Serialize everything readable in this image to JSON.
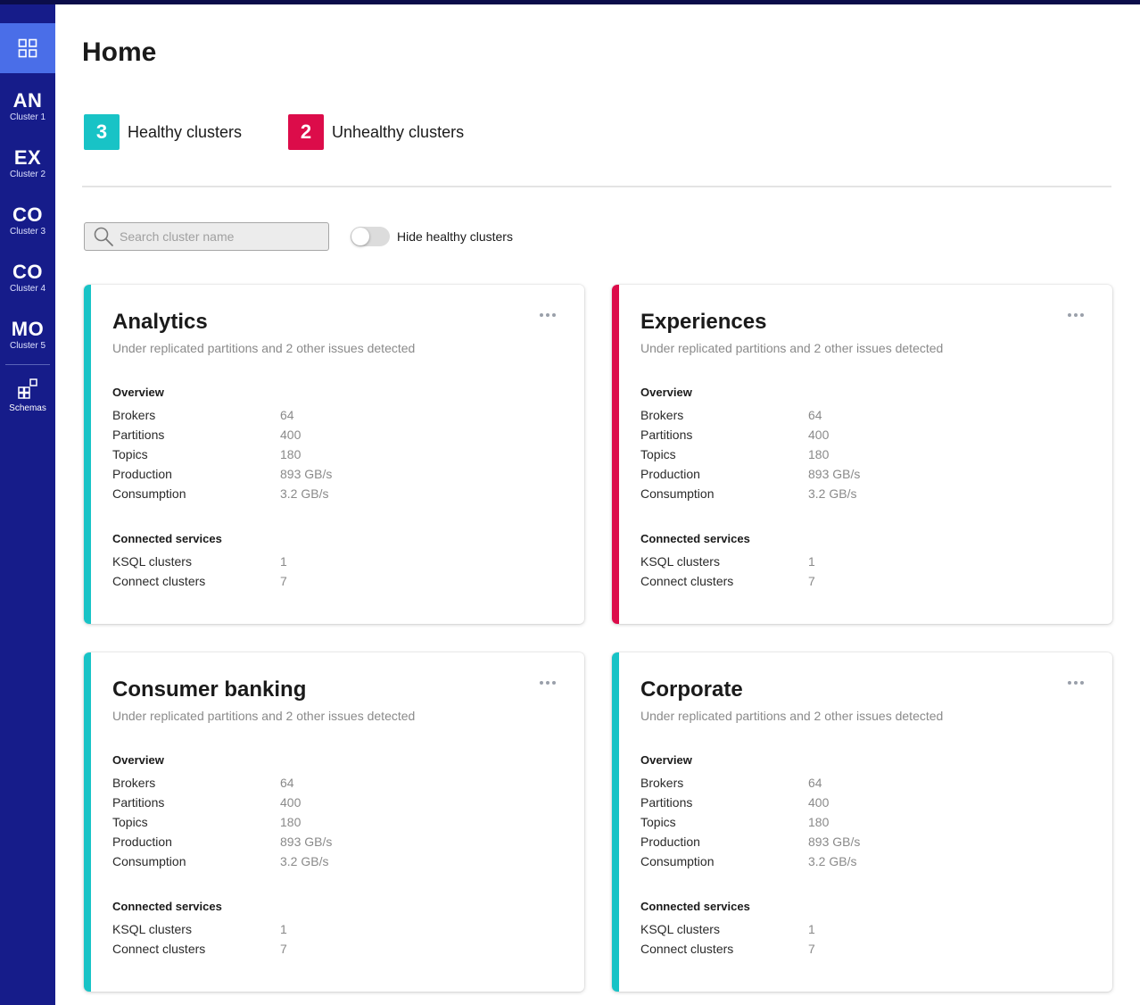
{
  "colors": {
    "healthy": "#18c3c6",
    "unhealthy": "#dc0c4a",
    "sidebar": "#161c8a",
    "sidebar_active": "#4a6ee8"
  },
  "sidebar": {
    "home_icon": "grid-icon",
    "items": [
      {
        "abbr": "AN",
        "label": "Cluster 1"
      },
      {
        "abbr": "EX",
        "label": "Cluster 2"
      },
      {
        "abbr": "CO",
        "label": "Cluster 3"
      },
      {
        "abbr": "CO",
        "label": "Cluster 4"
      },
      {
        "abbr": "MO",
        "label": "Cluster 5"
      }
    ],
    "schemas": {
      "icon": "schemas-icon",
      "label": "Schemas"
    }
  },
  "page": {
    "title": "Home"
  },
  "stats": {
    "healthy": {
      "count": "3",
      "label": "Healthy clusters"
    },
    "unhealthy": {
      "count": "2",
      "label": "Unhealthy clusters"
    }
  },
  "search": {
    "placeholder": "Search cluster name",
    "value": ""
  },
  "toggle": {
    "label": "Hide healthy clusters",
    "on": false
  },
  "section_labels": {
    "overview": "Overview",
    "connected": "Connected services"
  },
  "clusters": [
    {
      "name": "Analytics",
      "status": "healthy",
      "subtitle": "Under replicated partitions and 2 other issues detected",
      "overview": [
        {
          "k": "Brokers",
          "v": "64"
        },
        {
          "k": "Partitions",
          "v": "400"
        },
        {
          "k": "Topics",
          "v": "180"
        },
        {
          "k": "Production",
          "v": "893 GB/s"
        },
        {
          "k": "Consumption",
          "v": "3.2 GB/s"
        }
      ],
      "connected": [
        {
          "k": "KSQL clusters",
          "v": "1"
        },
        {
          "k": "Connect clusters",
          "v": "7"
        }
      ]
    },
    {
      "name": "Experiences",
      "status": "unhealthy",
      "subtitle": "Under replicated partitions and 2 other issues detected",
      "overview": [
        {
          "k": "Brokers",
          "v": "64"
        },
        {
          "k": "Partitions",
          "v": "400"
        },
        {
          "k": "Topics",
          "v": "180"
        },
        {
          "k": "Production",
          "v": "893 GB/s"
        },
        {
          "k": "Consumption",
          "v": "3.2 GB/s"
        }
      ],
      "connected": [
        {
          "k": "KSQL clusters",
          "v": "1"
        },
        {
          "k": "Connect clusters",
          "v": "7"
        }
      ]
    },
    {
      "name": "Consumer banking",
      "status": "healthy",
      "subtitle": "Under replicated partitions and 2 other issues detected",
      "overview": [
        {
          "k": "Brokers",
          "v": "64"
        },
        {
          "k": "Partitions",
          "v": "400"
        },
        {
          "k": "Topics",
          "v": "180"
        },
        {
          "k": "Production",
          "v": "893 GB/s"
        },
        {
          "k": "Consumption",
          "v": "3.2 GB/s"
        }
      ],
      "connected": [
        {
          "k": "KSQL clusters",
          "v": "1"
        },
        {
          "k": "Connect clusters",
          "v": "7"
        }
      ]
    },
    {
      "name": "Corporate",
      "status": "healthy",
      "subtitle": "Under replicated partitions and 2 other issues detected",
      "overview": [
        {
          "k": "Brokers",
          "v": "64"
        },
        {
          "k": "Partitions",
          "v": "400"
        },
        {
          "k": "Topics",
          "v": "180"
        },
        {
          "k": "Production",
          "v": "893 GB/s"
        },
        {
          "k": "Consumption",
          "v": "3.2 GB/s"
        }
      ],
      "connected": [
        {
          "k": "KSQL clusters",
          "v": "1"
        },
        {
          "k": "Connect clusters",
          "v": "7"
        }
      ]
    }
  ]
}
